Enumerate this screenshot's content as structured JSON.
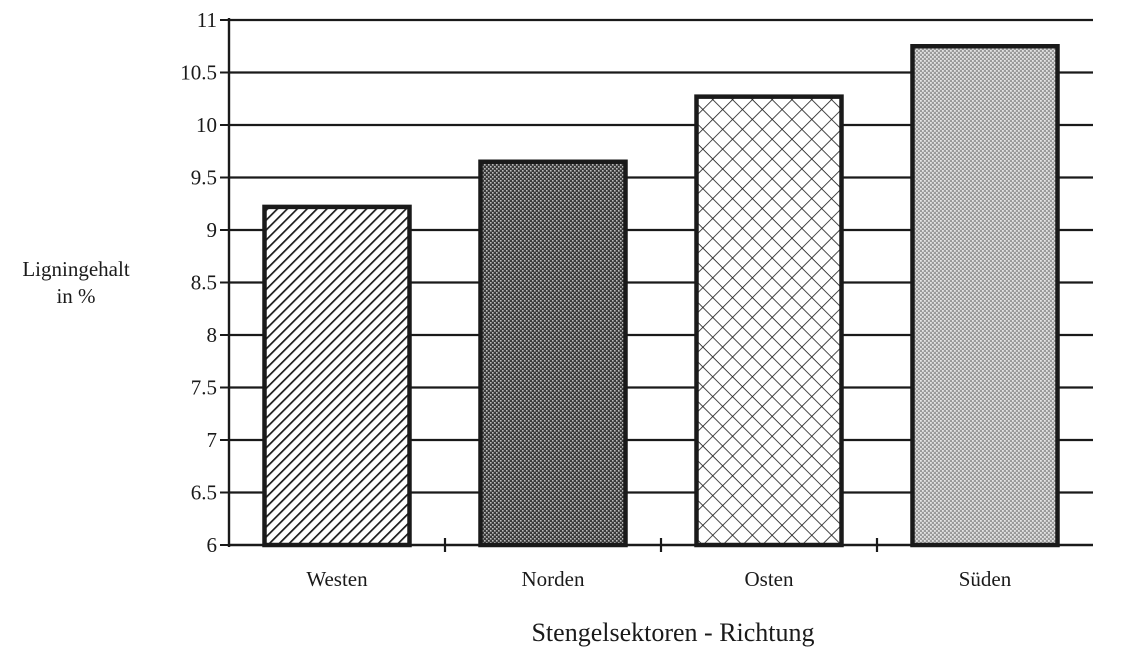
{
  "chart_data": {
    "type": "bar",
    "categories": [
      "Westen",
      "Norden",
      "Osten",
      "Süden"
    ],
    "values": [
      9.22,
      9.65,
      10.27,
      10.75
    ],
    "xlabel": "Stengelsektoren - Richtung",
    "ylabel_lines": [
      "Ligningehalt",
      "in %"
    ],
    "ylim": [
      6,
      11
    ],
    "yticks": [
      6,
      6.5,
      7,
      7.5,
      8,
      8.5,
      9,
      9.5,
      10,
      10.5,
      11
    ],
    "grid": true,
    "legend": "none",
    "bar_patterns": [
      "diagonal-hatch",
      "dense-dots",
      "crosshatch",
      "light-dots"
    ],
    "colors": {
      "ink": "#1a1a1a",
      "background": "#ffffff"
    }
  }
}
